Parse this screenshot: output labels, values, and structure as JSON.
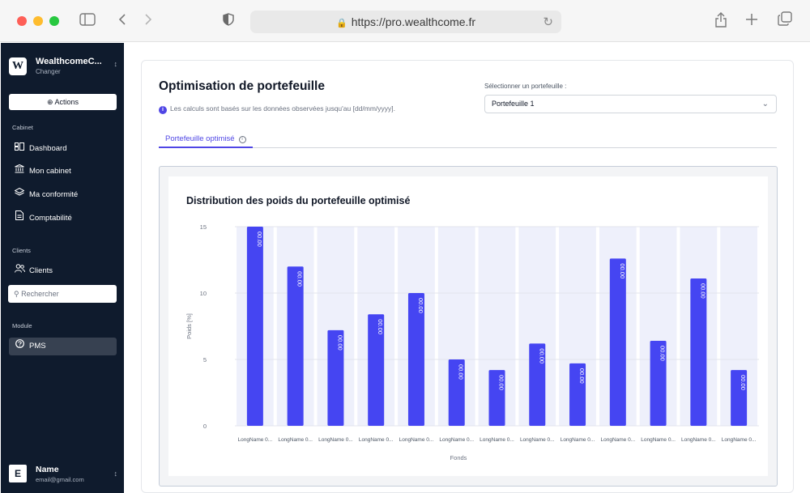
{
  "browser": {
    "url": "https://pro.wealthcome.fr"
  },
  "sidebar": {
    "brand_name": "WealthcomeC...",
    "brand_sub": "Changer",
    "actions_label": "Actions",
    "section_cabinet": "Cabinet",
    "items_cabinet": [
      {
        "label": "Dashboard",
        "icon": "dashboard-icon"
      },
      {
        "label": "Mon cabinet",
        "icon": "bank-icon"
      },
      {
        "label": "Ma conformité",
        "icon": "layers-icon"
      },
      {
        "label": "Comptabilité",
        "icon": "document-icon"
      }
    ],
    "section_clients": "Clients",
    "clients_item": "Clients",
    "search_placeholder": "Rechercher",
    "section_module": "Module",
    "module_item": "PMS",
    "user_initial": "E",
    "user_name": "Name",
    "user_email": "email@gmail.com"
  },
  "main": {
    "title": "Optimisation de portefeuille",
    "info": "Les calculs sont basés sur les données observées jusqu'au [dd/mm/yyyy].",
    "select_label": "Sélectionner un portefeuille :",
    "select_value": "Portefeuille 1",
    "tab_label": "Portefeuille optimisé"
  },
  "colors": {
    "accent": "#4f46e5",
    "bar": "#4545f2",
    "sidebar_bg": "#0f1b2d"
  },
  "chart_data": {
    "type": "bar",
    "title": "Distribution des poids du portefeuille optimisé",
    "xlabel": "Fonds",
    "ylabel": "Poids [%]",
    "ylim": [
      0,
      15
    ],
    "yticks": [
      0,
      5,
      10,
      15
    ],
    "categories": [
      "LongName 0...",
      "LongName 0...",
      "LongName 0...",
      "LongName 0...",
      "LongName 0...",
      "LongName 0...",
      "LongName 0...",
      "LongName 0...",
      "LongName 0...",
      "LongName 0...",
      "LongName 0...",
      "LongName 0...",
      "LongName 0..."
    ],
    "values": [
      15,
      12,
      7.2,
      8.4,
      10,
      5,
      4.2,
      6.2,
      4.7,
      12.6,
      6.4,
      11.1,
      4.2
    ],
    "data_labels": [
      "00.00",
      "00.00",
      "00.00",
      "00.00",
      "00.00",
      "00.00",
      "00.00",
      "00.00",
      "00.00",
      "00.00",
      "00.00",
      "00.00",
      "00.00"
    ]
  }
}
